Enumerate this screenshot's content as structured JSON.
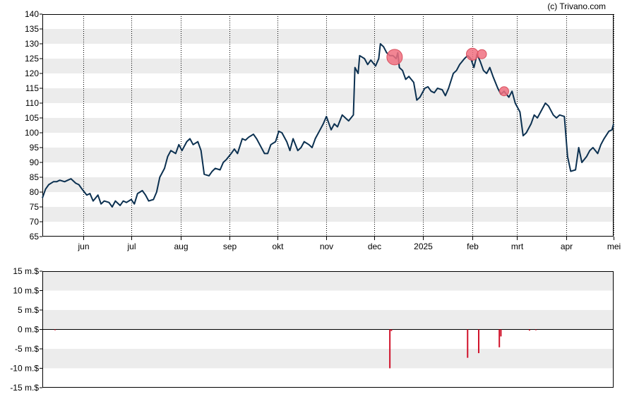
{
  "credit": "(c) Trivano.com",
  "colors": {
    "price_line": "#0b3050",
    "marker_fill": "#f07080",
    "marker_stroke": "#d8505e",
    "volume_bar": "#d0122a",
    "band": "#ececec",
    "axis": "#000000",
    "grid": "#000000"
  },
  "chart_data": [
    {
      "type": "line",
      "title": "",
      "xlabel": "",
      "ylabel": "",
      "ylim": [
        65,
        140
      ],
      "yticks": [
        140,
        135,
        130,
        125,
        120,
        115,
        110,
        105,
        100,
        95,
        90,
        85,
        80,
        75,
        70,
        65
      ],
      "xlim": [
        "2024-05-06",
        "2025-05-01"
      ],
      "xticks": [
        {
          "label": "jun",
          "date": "2024-06-01"
        },
        {
          "label": "jul",
          "date": "2024-07-01"
        },
        {
          "label": "aug",
          "date": "2024-08-01"
        },
        {
          "label": "sep",
          "date": "2024-09-01"
        },
        {
          "label": "okt",
          "date": "2024-10-01"
        },
        {
          "label": "nov",
          "date": "2024-11-01"
        },
        {
          "label": "dec",
          "date": "2024-12-01"
        },
        {
          "label": "2025",
          "date": "2025-01-01"
        },
        {
          "label": "feb",
          "date": "2025-02-01"
        },
        {
          "label": "mrt",
          "date": "2025-03-01"
        },
        {
          "label": "apr",
          "date": "2025-04-01"
        },
        {
          "label": "mei",
          "date": "2025-05-01"
        }
      ],
      "grid": "vertical dotted at month ticks, alternating horizontal bands",
      "series": [
        {
          "points": [
            [
              "2024-05-06",
              78
            ],
            [
              "2024-05-08",
              81
            ],
            [
              "2024-05-10",
              82.5
            ],
            [
              "2024-05-13",
              83.5
            ],
            [
              "2024-05-15",
              83.5
            ],
            [
              "2024-05-17",
              84
            ],
            [
              "2024-05-20",
              83.5
            ],
            [
              "2024-05-22",
              84
            ],
            [
              "2024-05-24",
              84.5
            ],
            [
              "2024-05-27",
              83
            ],
            [
              "2024-05-29",
              82.5
            ],
            [
              "2024-05-31",
              81
            ],
            [
              "2024-06-03",
              79
            ],
            [
              "2024-06-05",
              79.5
            ],
            [
              "2024-06-07",
              77
            ],
            [
              "2024-06-10",
              79
            ],
            [
              "2024-06-12",
              76
            ],
            [
              "2024-06-14",
              77
            ],
            [
              "2024-06-17",
              76.5
            ],
            [
              "2024-06-19",
              75
            ],
            [
              "2024-06-21",
              77
            ],
            [
              "2024-06-24",
              75.5
            ],
            [
              "2024-06-26",
              77
            ],
            [
              "2024-06-28",
              76.5
            ],
            [
              "2024-07-01",
              77.5
            ],
            [
              "2024-07-03",
              76
            ],
            [
              "2024-07-05",
              79.5
            ],
            [
              "2024-07-08",
              80.5
            ],
            [
              "2024-07-10",
              79
            ],
            [
              "2024-07-12",
              77
            ],
            [
              "2024-07-15",
              77.5
            ],
            [
              "2024-07-17",
              80
            ],
            [
              "2024-07-19",
              85
            ],
            [
              "2024-07-22",
              88
            ],
            [
              "2024-07-24",
              92
            ],
            [
              "2024-07-26",
              94
            ],
            [
              "2024-07-29",
              93
            ],
            [
              "2024-07-31",
              96
            ],
            [
              "2024-08-02",
              94
            ],
            [
              "2024-08-05",
              97
            ],
            [
              "2024-08-07",
              98
            ],
            [
              "2024-08-09",
              96
            ],
            [
              "2024-08-12",
              97
            ],
            [
              "2024-08-14",
              94
            ],
            [
              "2024-08-16",
              86
            ],
            [
              "2024-08-19",
              85.5
            ],
            [
              "2024-08-21",
              87
            ],
            [
              "2024-08-23",
              88
            ],
            [
              "2024-08-26",
              87.5
            ],
            [
              "2024-08-28",
              90
            ],
            [
              "2024-08-30",
              91
            ],
            [
              "2024-09-02",
              93
            ],
            [
              "2024-09-04",
              94.5
            ],
            [
              "2024-09-06",
              93
            ],
            [
              "2024-09-09",
              98
            ],
            [
              "2024-09-11",
              97.5
            ],
            [
              "2024-09-13",
              98.5
            ],
            [
              "2024-09-16",
              99.5
            ],
            [
              "2024-09-18",
              98
            ],
            [
              "2024-09-20",
              96
            ],
            [
              "2024-09-23",
              93
            ],
            [
              "2024-09-25",
              93
            ],
            [
              "2024-09-27",
              96
            ],
            [
              "2024-09-30",
              97
            ],
            [
              "2024-10-02",
              100.5
            ],
            [
              "2024-10-04",
              100
            ],
            [
              "2024-10-07",
              97
            ],
            [
              "2024-10-09",
              94
            ],
            [
              "2024-10-11",
              98
            ],
            [
              "2024-10-14",
              94
            ],
            [
              "2024-10-16",
              95
            ],
            [
              "2024-10-18",
              97
            ],
            [
              "2024-10-21",
              96
            ],
            [
              "2024-10-23",
              95
            ],
            [
              "2024-10-25",
              98
            ],
            [
              "2024-10-28",
              101
            ],
            [
              "2024-10-30",
              103
            ],
            [
              "2024-11-01",
              105.5
            ],
            [
              "2024-11-04",
              101
            ],
            [
              "2024-11-06",
              103
            ],
            [
              "2024-11-08",
              102
            ],
            [
              "2024-11-11",
              106
            ],
            [
              "2024-11-13",
              105
            ],
            [
              "2024-11-15",
              104
            ],
            [
              "2024-11-18",
              106
            ],
            [
              "2024-11-19",
              122
            ],
            [
              "2024-11-21",
              120
            ],
            [
              "2024-11-22",
              126
            ],
            [
              "2024-11-25",
              125
            ],
            [
              "2024-11-27",
              123
            ],
            [
              "2024-11-29",
              124.5
            ],
            [
              "2024-12-02",
              122.5
            ],
            [
              "2024-12-04",
              125
            ],
            [
              "2024-12-05",
              130
            ],
            [
              "2024-12-07",
              129
            ],
            [
              "2024-12-09",
              127
            ],
            [
              "2024-12-11",
              126
            ],
            [
              "2024-12-13",
              126
            ],
            [
              "2024-12-15",
              125
            ],
            [
              "2024-12-16",
              127
            ],
            [
              "2024-12-17",
              122
            ],
            [
              "2024-12-19",
              121
            ],
            [
              "2024-12-21",
              118
            ],
            [
              "2024-12-23",
              119
            ],
            [
              "2024-12-26",
              117
            ],
            [
              "2024-12-28",
              111
            ],
            [
              "2024-12-30",
              112
            ],
            [
              "2025-01-02",
              115
            ],
            [
              "2025-01-04",
              115.5
            ],
            [
              "2025-01-06",
              114
            ],
            [
              "2025-01-08",
              113.5
            ],
            [
              "2025-01-10",
              115
            ],
            [
              "2025-01-13",
              114.5
            ],
            [
              "2025-01-15",
              112.5
            ],
            [
              "2025-01-17",
              115
            ],
            [
              "2025-01-20",
              120
            ],
            [
              "2025-01-22",
              121
            ],
            [
              "2025-01-24",
              123
            ],
            [
              "2025-01-27",
              125
            ],
            [
              "2025-01-29",
              126
            ],
            [
              "2025-01-31",
              125
            ],
            [
              "2025-02-02",
              122
            ],
            [
              "2025-02-04",
              126.5
            ],
            [
              "2025-02-06",
              124
            ],
            [
              "2025-02-08",
              121
            ],
            [
              "2025-02-10",
              120
            ],
            [
              "2025-02-12",
              122
            ],
            [
              "2025-02-14",
              119
            ],
            [
              "2025-02-17",
              115
            ],
            [
              "2025-02-19",
              113
            ],
            [
              "2025-02-21",
              114
            ],
            [
              "2025-02-24",
              112
            ],
            [
              "2025-02-26",
              114
            ],
            [
              "2025-02-28",
              110
            ],
            [
              "2025-03-03",
              107
            ],
            [
              "2025-03-05",
              99
            ],
            [
              "2025-03-07",
              100
            ],
            [
              "2025-03-10",
              103
            ],
            [
              "2025-03-12",
              106
            ],
            [
              "2025-03-14",
              105
            ],
            [
              "2025-03-17",
              108
            ],
            [
              "2025-03-19",
              110
            ],
            [
              "2025-03-21",
              109
            ],
            [
              "2025-03-24",
              106
            ],
            [
              "2025-03-26",
              105
            ],
            [
              "2025-03-28",
              106
            ],
            [
              "2025-03-31",
              105.5
            ],
            [
              "2025-04-02",
              92
            ],
            [
              "2025-04-04",
              87
            ],
            [
              "2025-04-07",
              87.5
            ],
            [
              "2025-04-09",
              95
            ],
            [
              "2025-04-11",
              90
            ],
            [
              "2025-04-14",
              92
            ],
            [
              "2025-04-16",
              94
            ],
            [
              "2025-04-18",
              95
            ],
            [
              "2025-04-21",
              93
            ],
            [
              "2025-04-23",
              96
            ],
            [
              "2025-04-25",
              98
            ],
            [
              "2025-04-28",
              100.5
            ],
            [
              "2025-04-30",
              101
            ],
            [
              "2025-05-01",
              103
            ]
          ]
        }
      ],
      "markers": [
        {
          "date": "2024-12-14",
          "value": 125.5,
          "size": "large"
        },
        {
          "date": "2025-02-01",
          "value": 126.5,
          "size": "medium"
        },
        {
          "date": "2025-02-07",
          "value": 126.5,
          "size": "small"
        },
        {
          "date": "2025-02-21",
          "value": 114,
          "size": "small"
        }
      ]
    },
    {
      "type": "bar",
      "title": "",
      "xlabel": "",
      "ylabel": "",
      "ylim": [
        -15,
        15
      ],
      "yticks": [
        {
          "value": 15,
          "label": "15 m.$"
        },
        {
          "value": 10,
          "label": "10 m.$"
        },
        {
          "value": 5,
          "label": "5 m.$"
        },
        {
          "value": 0,
          "label": "0 m.$"
        },
        {
          "value": -5,
          "label": "-5 m.$"
        },
        {
          "value": -10,
          "label": "-10 m.$"
        },
        {
          "value": -15,
          "label": "-15 m.$"
        }
      ],
      "bars": [
        {
          "date": "2024-05-14",
          "value": -0.2
        },
        {
          "date": "2024-12-11",
          "value": -10
        },
        {
          "date": "2024-12-12",
          "value": -0.4
        },
        {
          "date": "2025-01-29",
          "value": -7.3
        },
        {
          "date": "2025-02-05",
          "value": -6.1
        },
        {
          "date": "2025-02-18",
          "value": -4.6
        },
        {
          "date": "2025-02-19",
          "value": -1.8
        },
        {
          "date": "2025-03-09",
          "value": -0.3
        },
        {
          "date": "2025-03-13",
          "value": -0.2
        }
      ]
    }
  ]
}
